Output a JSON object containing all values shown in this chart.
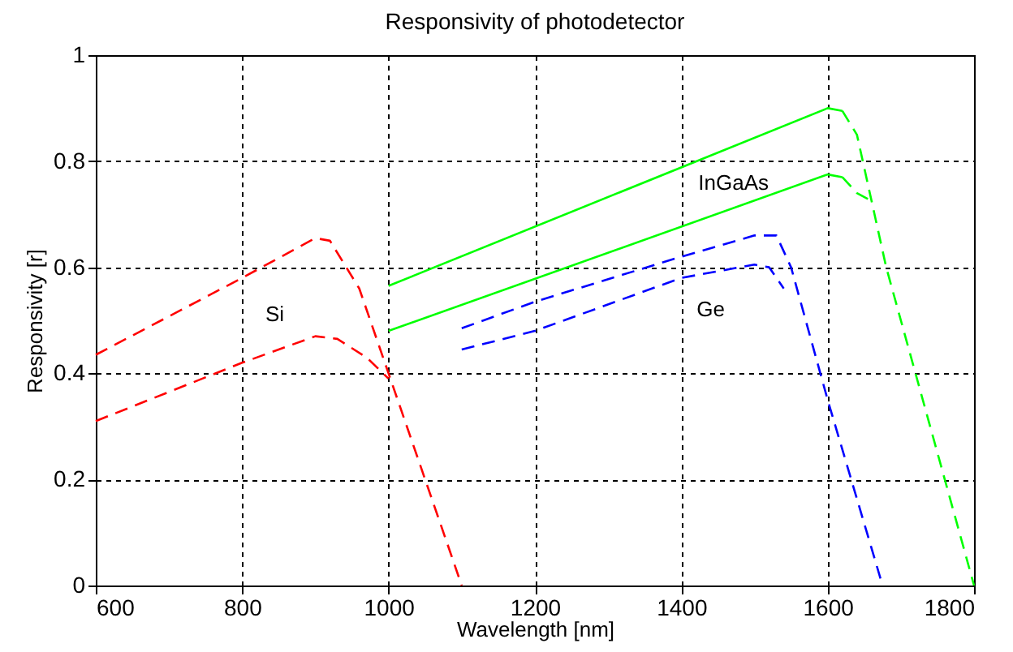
{
  "chart_data": {
    "type": "line",
    "title": "Responsivity of photodetector",
    "xlabel": "Wavelength [nm]",
    "ylabel": "Responsivity [r]",
    "xlim": [
      600,
      1800
    ],
    "xticks": [
      600,
      800,
      1000,
      1200,
      1400,
      1600,
      1800
    ],
    "ylim": [
      0,
      1
    ],
    "yticks": [
      0,
      0.2,
      0.4,
      0.6,
      0.8,
      1
    ],
    "grid": true,
    "marker": "none",
    "series": [
      {
        "color": "#ff0000",
        "line_style": "dashed",
        "x": [
          600,
          800,
          900,
          920,
          960,
          1000,
          1050,
          1100
        ],
        "values": [
          0.435,
          0.58,
          0.655,
          0.65,
          0.56,
          0.4,
          0.2,
          0
        ]
      },
      {
        "color": "#ff0000",
        "line_style": "dashed",
        "x": [
          600,
          800,
          900,
          930,
          970,
          1000
        ],
        "values": [
          0.31,
          0.42,
          0.47,
          0.465,
          0.43,
          0.39
        ]
      },
      {
        "color": "#00ff00",
        "line_style": "solid",
        "x": [
          1000,
          1600,
          1620
        ],
        "values": [
          0.565,
          0.9,
          0.895
        ]
      },
      {
        "color": "#00ff00",
        "line_style": "dashed",
        "x": [
          1620,
          1640,
          1680,
          1800
        ],
        "values": [
          0.895,
          0.85,
          0.6,
          0
        ]
      },
      {
        "color": "#00ff00",
        "line_style": "solid",
        "x": [
          1000,
          1600,
          1620
        ],
        "values": [
          0.48,
          0.775,
          0.77
        ]
      },
      {
        "color": "#00ff00",
        "line_style": "dashed",
        "x": [
          1620,
          1640,
          1660
        ],
        "values": [
          0.77,
          0.74,
          0.725
        ]
      },
      {
        "color": "#0000ff",
        "line_style": "dashed",
        "x": [
          1100,
          1200,
          1400,
          1500,
          1530,
          1550,
          1600,
          1675
        ],
        "values": [
          0.485,
          0.535,
          0.62,
          0.66,
          0.66,
          0.6,
          0.35,
          0
        ]
      },
      {
        "color": "#0000ff",
        "line_style": "dashed",
        "x": [
          1100,
          1200,
          1400,
          1500,
          1520,
          1540
        ],
        "values": [
          0.445,
          0.48,
          0.58,
          0.605,
          0.6,
          0.56
        ]
      }
    ],
    "annotations": [
      "Si",
      "InGaAs",
      "Ge"
    ]
  }
}
